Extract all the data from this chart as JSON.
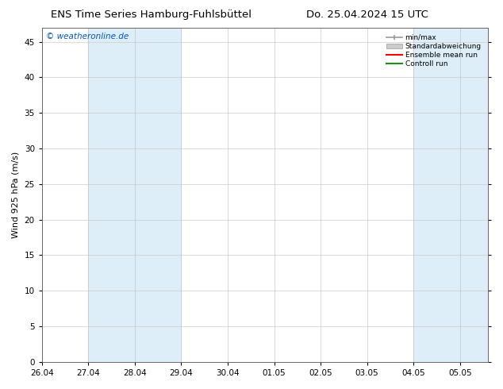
{
  "title_left": "ENS Time Series Hamburg-Fuhlsbüttel",
  "title_right": "Do. 25.04.2024 15 UTC",
  "ylabel": "Wind 925 hPa (m/s)",
  "watermark": "© weatheronline.de",
  "ylim": [
    0,
    47
  ],
  "yticks": [
    0,
    5,
    10,
    15,
    20,
    25,
    30,
    35,
    40,
    45
  ],
  "x_labels": [
    "26.04",
    "27.04",
    "28.04",
    "29.04",
    "30.04",
    "01.05",
    "02.05",
    "03.05",
    "04.05",
    "05.05"
  ],
  "shading_color": "#ddeef9",
  "bg_color": "#ffffff",
  "grid_color": "#cccccc",
  "legend_items": [
    {
      "label": "min/max",
      "color": "#aaaaaa"
    },
    {
      "label": "Standardabweichung",
      "color": "#cccccc"
    },
    {
      "label": "Ensemble mean run",
      "color": "#ff0000"
    },
    {
      "label": "Controll run",
      "color": "#228822"
    }
  ],
  "title_fontsize": 9.5,
  "axis_fontsize": 8,
  "watermark_color": "#0055cc",
  "tick_label_fontsize": 7.5
}
